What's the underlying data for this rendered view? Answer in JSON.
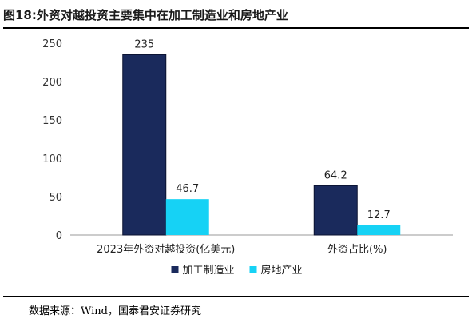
{
  "figure": {
    "title": "图18:外资对越投资主要集中在加工制造业和房地产业",
    "source": "数据来源：Wind，国泰君安证券研究"
  },
  "chart_data": {
    "type": "bar",
    "categories": [
      "2023年外资对越投资(亿美元)",
      "外资占比(%)"
    ],
    "series": [
      {
        "name": "加工制造业",
        "values": [
          235,
          64.2
        ],
        "labels": [
          "235",
          "64.2"
        ],
        "color": "#1a2a5c"
      },
      {
        "name": "房地产业",
        "values": [
          46.7,
          12.7
        ],
        "labels": [
          "46.7",
          "12.7"
        ],
        "color": "#16d2f5"
      }
    ],
    "ylim": [
      0,
      250
    ],
    "yticks": [
      0,
      50,
      100,
      150,
      200,
      250
    ],
    "grid": false,
    "legend": "bottom",
    "xlabel": "",
    "ylabel": ""
  }
}
